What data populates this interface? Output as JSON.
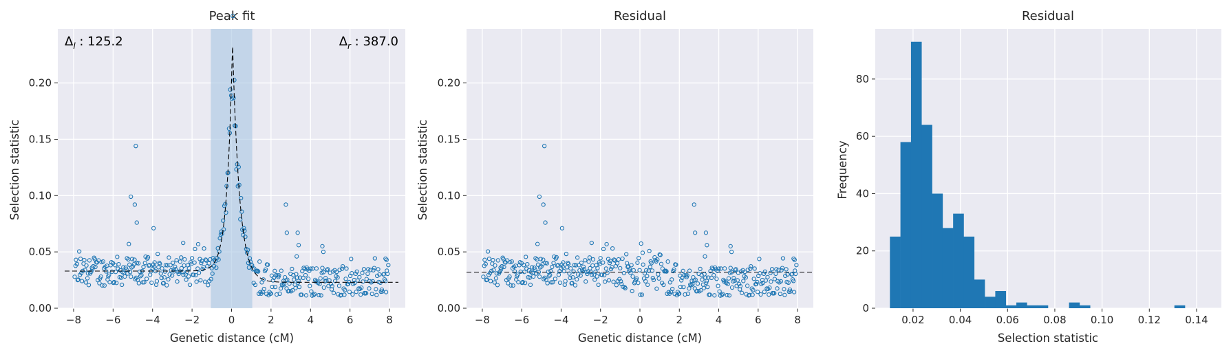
{
  "colors": {
    "points": "#1f77b4",
    "bars": "#1f77b4",
    "band": "#a9c6e3",
    "panel": "#eaeaf2",
    "fit": "#000000"
  },
  "chart_data": [
    {
      "type": "scatter",
      "title": "Peak fit",
      "xlabel": "Genetic distance (cM)",
      "ylabel": "Selection statistic",
      "xlim": [
        -8.8,
        8.8
      ],
      "ylim": [
        0.0,
        0.248
      ],
      "xticks": [
        -8,
        -6,
        -4,
        -2,
        0,
        2,
        4,
        6,
        8
      ],
      "xticklabels": [
        "−8",
        "−6",
        "−4",
        "−2",
        "0",
        "2",
        "4",
        "6",
        "8"
      ],
      "yticks": [
        0.0,
        0.05,
        0.1,
        0.15,
        0.2
      ],
      "yticklabels": [
        "0.00",
        "0.05",
        "0.10",
        "0.15",
        "0.20"
      ],
      "annotation_left": {
        "symbol": "Δ",
        "sub": "l",
        "text": " : 125.2"
      },
      "annotation_right": {
        "symbol": "Δ",
        "sub": "r",
        "text": " : 387.0"
      },
      "highlight_region": [
        -1.05,
        1.05
      ],
      "fit": {
        "peak_x": 0.05,
        "peak_y": 0.236,
        "baseline_left": 0.033,
        "baseline_right": 0.023,
        "width_left": 0.28,
        "width_right": 0.35
      },
      "outliers": [
        {
          "x": -4.85,
          "y": 0.144
        },
        {
          "x": -5.1,
          "y": 0.099
        },
        {
          "x": -4.9,
          "y": 0.092
        },
        {
          "x": -4.8,
          "y": 0.076
        },
        {
          "x": -3.95,
          "y": 0.071
        },
        {
          "x": -5.2,
          "y": 0.057
        },
        {
          "x": -2.45,
          "y": 0.058
        },
        {
          "x": 2.75,
          "y": 0.092
        },
        {
          "x": 2.8,
          "y": 0.067
        },
        {
          "x": 3.35,
          "y": 0.067
        },
        {
          "x": 3.4,
          "y": 0.056
        },
        {
          "x": 3.3,
          "y": 0.046
        },
        {
          "x": 4.6,
          "y": 0.055
        },
        {
          "x": 4.65,
          "y": 0.05
        },
        {
          "x": 7.8,
          "y": 0.044
        },
        {
          "x": 7.85,
          "y": 0.043
        }
      ],
      "n_points": 420,
      "ydist": "bounded_jitter"
    },
    {
      "type": "scatter",
      "title": "Residual",
      "xlabel": "Genetic distance (cM)",
      "ylabel": "Selection statistic",
      "xlim": [
        -8.8,
        8.8
      ],
      "ylim": [
        0.0,
        0.248
      ],
      "xticks": [
        -8,
        -6,
        -4,
        -2,
        0,
        2,
        4,
        6,
        8
      ],
      "xticklabels": [
        "−8",
        "−6",
        "−4",
        "−2",
        "0",
        "2",
        "4",
        "6",
        "8"
      ],
      "yticks": [
        0.0,
        0.05,
        0.1,
        0.15,
        0.2
      ],
      "yticklabels": [
        "0.00",
        "0.05",
        "0.10",
        "0.15",
        "0.20"
      ],
      "hline": 0.032
    },
    {
      "type": "bar",
      "title": "Residual",
      "xlabel": "Selection statistic",
      "ylabel": "Frequency",
      "xlim": [
        0.004,
        0.1505
      ],
      "ylim": [
        0,
        97.5
      ],
      "xticks": [
        0.02,
        0.04,
        0.06,
        0.08,
        0.1,
        0.12,
        0.14
      ],
      "xticklabels": [
        "0.02",
        "0.04",
        "0.06",
        "0.08",
        "0.10",
        "0.12",
        "0.14"
      ],
      "yticks": [
        0,
        20,
        40,
        60,
        80
      ],
      "yticklabels": [
        "0",
        "20",
        "40",
        "60",
        "80"
      ],
      "bin_start": 0.0102,
      "bin_width": 0.00446,
      "values": [
        25,
        58,
        93,
        64,
        40,
        28,
        33,
        25,
        10,
        4,
        6,
        1,
        2,
        1,
        1,
        0,
        0,
        2,
        1,
        0,
        0,
        0,
        0,
        0,
        0,
        0,
        0,
        1
      ]
    }
  ]
}
